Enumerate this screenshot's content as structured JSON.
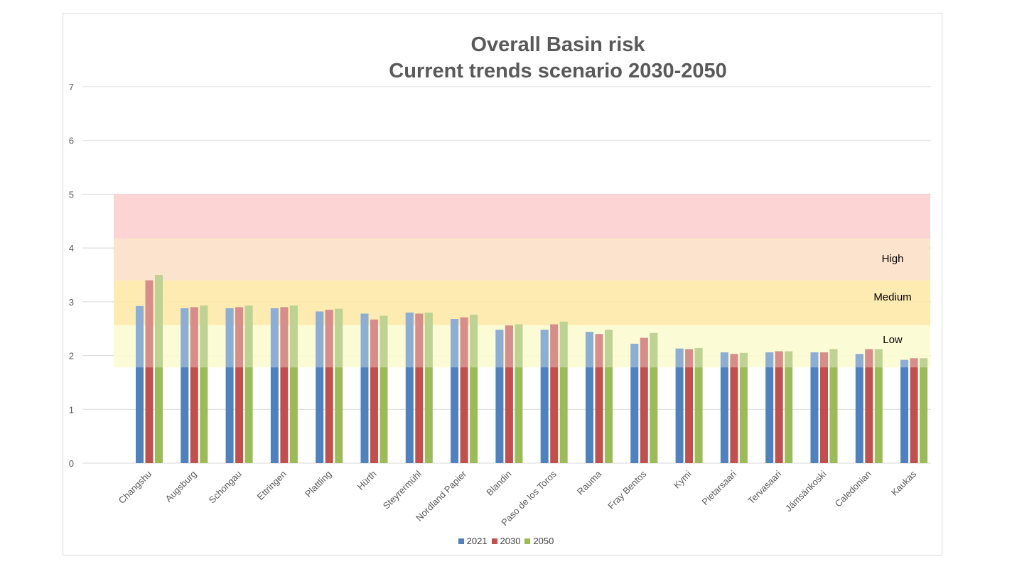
{
  "chart_data": {
    "type": "bar",
    "title": "Overall Basin risk",
    "subtitle": "Current trends scenario 2030-2050",
    "xlabel": "",
    "ylabel": "",
    "ylim": [
      0,
      7
    ],
    "yticks": [
      "0",
      "1",
      "2",
      "3",
      "4",
      "5",
      "6",
      "7"
    ],
    "grid": true,
    "legend_position": "bottom",
    "categories": [
      "Changshu",
      "Augsburg",
      "Schongau",
      "Ettringen",
      "Plattling",
      "Hürth",
      "Steyrermühl",
      "Nordland Papier",
      "Blandin",
      "Paso de los Toros",
      "Rauma",
      "Fray Bentos",
      "Kymi",
      "Pietarsaari",
      "Tervasaari",
      "Jämsänkoski",
      "Caledonian",
      "Kaukas"
    ],
    "series": [
      {
        "name": "2021",
        "color": "#4f81bd",
        "values": [
          2.92,
          2.88,
          2.88,
          2.88,
          2.82,
          2.78,
          2.8,
          2.68,
          2.48,
          2.48,
          2.44,
          2.22,
          2.13,
          2.06,
          2.06,
          2.06,
          2.03,
          1.92
        ]
      },
      {
        "name": "2030",
        "color": "#c0504d",
        "values": [
          3.4,
          2.9,
          2.9,
          2.9,
          2.85,
          2.67,
          2.78,
          2.71,
          2.56,
          2.58,
          2.4,
          2.33,
          2.12,
          2.03,
          2.08,
          2.06,
          2.12,
          1.95
        ]
      },
      {
        "name": "2050",
        "color": "#9bbb59",
        "values": [
          3.5,
          2.93,
          2.93,
          2.93,
          2.87,
          2.74,
          2.8,
          2.76,
          2.58,
          2.63,
          2.48,
          2.42,
          2.14,
          2.05,
          2.08,
          2.12,
          2.12,
          1.95
        ]
      }
    ],
    "risk_bands": [
      {
        "label": "Low",
        "from": 1.78,
        "to": 2.57,
        "color": "#fbfbd0"
      },
      {
        "label": "Medium",
        "from": 2.57,
        "to": 3.4,
        "color": "#fde9a9"
      },
      {
        "label": "High",
        "from": 3.4,
        "to": 4.18,
        "color": "#fce0c9"
      },
      {
        "label": "",
        "from": 4.18,
        "to": 5.0,
        "color": "#fdcfcf"
      }
    ]
  }
}
